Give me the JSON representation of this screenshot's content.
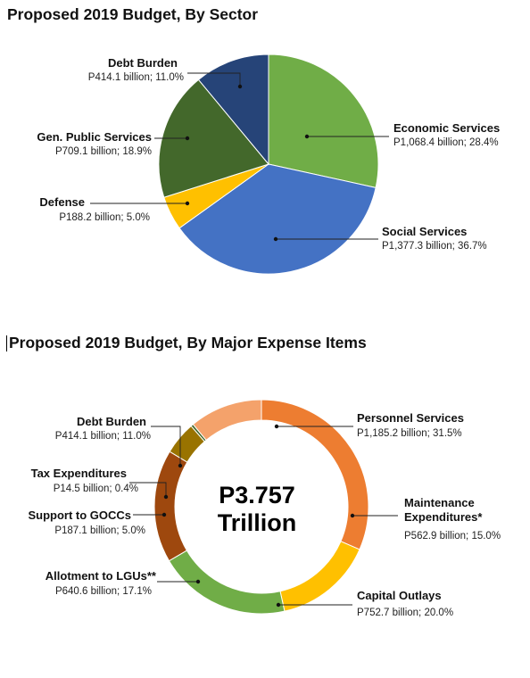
{
  "chart_data": [
    {
      "type": "pie",
      "title": "Proposed 2019 Budget, By Sector",
      "slices": [
        {
          "name": "Economic Services",
          "value_label": "P1,068.4 billion;  28.4%",
          "value": 1068.4,
          "percent": 28.4,
          "color": "#70AD47"
        },
        {
          "name": "Social Services",
          "value_label": "P1,377.3 billion;  36.7%",
          "value": 1377.3,
          "percent": 36.7,
          "color": "#4472C4"
        },
        {
          "name": "Defense",
          "value_label": "P188.2 billion;  5.0%",
          "value": 188.2,
          "percent": 5.0,
          "color": "#FFC000"
        },
        {
          "name": "Gen. Public Services",
          "value_label": "P709.1 billion;  18.9%",
          "value": 709.1,
          "percent": 18.9,
          "color": "#43682B"
        },
        {
          "name": "Debt Burden",
          "value_label": "P414.1 billion;  11.0%",
          "value": 414.1,
          "percent": 11.0,
          "color": "#264478"
        }
      ]
    },
    {
      "type": "pie",
      "donut": true,
      "title": "Proposed 2019 Budget, By Major Expense Items",
      "center_label_1": "P3.757",
      "center_label_2": "Trillion",
      "slices": [
        {
          "name": "Personnel Services",
          "value_label": "P1,185.2 billion;  31.5%",
          "value": 1185.2,
          "percent": 31.5,
          "color": "#ED7D31"
        },
        {
          "name": "Maintenance",
          "name_line2": "Expenditures*",
          "value_label": "P562.9 billion;  15.0%",
          "value": 562.9,
          "percent": 15.0,
          "color": "#FFC000"
        },
        {
          "name": "Capital Outlays",
          "value_label": "P752.7 billion;  20.0%",
          "value": 752.7,
          "percent": 20.0,
          "color": "#70AD47"
        },
        {
          "name": "Allotment to LGUs**",
          "value_label": "P640.6 billion;  17.1%",
          "value": 640.6,
          "percent": 17.1,
          "color": "#9E480E"
        },
        {
          "name": "Support to GOCCs",
          "value_label": "P187.1 billion;  5.0%",
          "value": 187.1,
          "percent": 5.0,
          "color": "#997300"
        },
        {
          "name": "Tax Expenditures",
          "value_label": "P14.5 billion;  0.4%",
          "value": 14.5,
          "percent": 0.4,
          "color": "#43682B"
        },
        {
          "name": "Debt Burden",
          "value_label": "P414.1 billion;  11.0%",
          "value": 414.1,
          "percent": 11.0,
          "color": "#F4A26B"
        }
      ]
    }
  ]
}
